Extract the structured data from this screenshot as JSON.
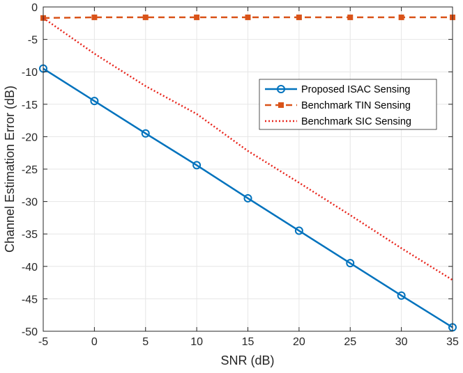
{
  "chart_data": {
    "type": "line",
    "xlabel": "SNR (dB)",
    "ylabel": "Channel Estimation Error (dB)",
    "xlim": [
      -5,
      35
    ],
    "ylim": [
      -50,
      0
    ],
    "xticks": [
      -5,
      0,
      5,
      10,
      15,
      20,
      25,
      30,
      35
    ],
    "yticks": [
      0,
      -5,
      -10,
      -15,
      -20,
      -25,
      -30,
      -35,
      -40,
      -45,
      -50
    ],
    "grid": true,
    "legend_position": "upper-right",
    "series": [
      {
        "name": "Proposed ISAC Sensing",
        "color": "#0072BD",
        "line_style": "solid",
        "marker": "circle",
        "x": [
          -5,
          0,
          5,
          10,
          15,
          20,
          25,
          30,
          35
        ],
        "y": [
          -9.5,
          -14.5,
          -19.5,
          -24.4,
          -29.5,
          -34.5,
          -39.5,
          -44.5,
          -49.4
        ]
      },
      {
        "name": "Benchmark TIN Sensing",
        "color": "#D95319",
        "line_style": "dashed",
        "marker": "square",
        "x": [
          -5,
          0,
          5,
          10,
          15,
          20,
          25,
          30,
          35
        ],
        "y": [
          -1.7,
          -1.6,
          -1.6,
          -1.6,
          -1.6,
          -1.6,
          -1.6,
          -1.6,
          -1.6
        ]
      },
      {
        "name": "Benchmark SIC Sensing",
        "color": "#E8251C",
        "line_style": "dotted",
        "marker": "none",
        "x": [
          -5,
          0,
          5,
          10,
          15,
          20,
          25,
          30,
          35
        ],
        "y": [
          -1.7,
          -7.2,
          -12.2,
          -16.5,
          -22.2,
          -27.1,
          -32.1,
          -37.2,
          -42.1
        ]
      }
    ]
  }
}
